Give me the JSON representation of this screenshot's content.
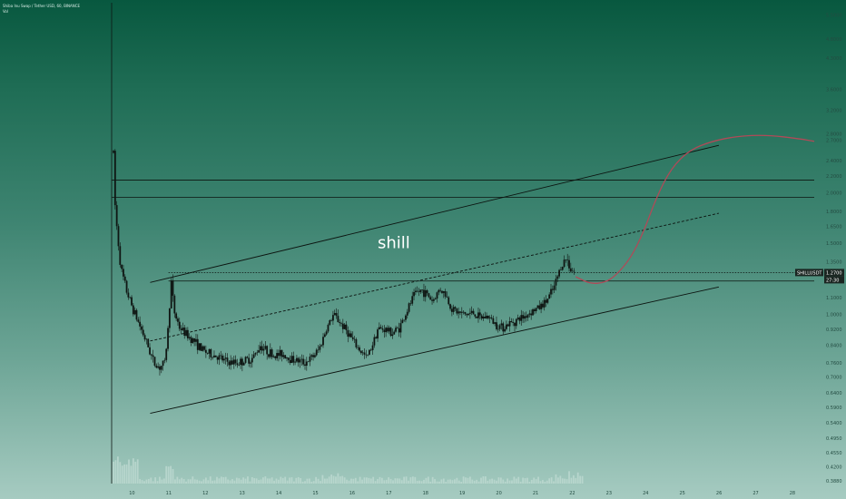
{
  "header": {
    "line1": "Shiba Inu Swap / Tether USD, 60, BINANCE",
    "line2": "Vol"
  },
  "symbol_tag": "SHILLUSDT",
  "price_tag": "1.2700",
  "countdown_tag": "27:30",
  "annotation_text": "shill",
  "colors": {
    "candles": "#0f1613",
    "lines": "#0c1410",
    "projection": "#b04a58",
    "tag_bg": "#1a2521"
  },
  "chart_data": {
    "type": "candlestick",
    "title": "",
    "x_axis": {
      "ticks": [
        10,
        11,
        12,
        13,
        14,
        15,
        16,
        17,
        18,
        19,
        20,
        21,
        22,
        23,
        24,
        25,
        26,
        27,
        28
      ],
      "range": [
        9.45,
        28.6
      ]
    },
    "y_axis": {
      "scale": "log",
      "range": [
        0.382,
        5.9
      ],
      "ticks": [
        "5.5000",
        "4.8000",
        "4.3000",
        "3.6000",
        "3.2000",
        "2.8000",
        "2.7000",
        "2.4000",
        "2.2000",
        "2.0000",
        "1.8000",
        "1.6500",
        "1.5000",
        "1.3500",
        "1.2700",
        "1.1000",
        "1.0000",
        "0.9200",
        "0.8400",
        "0.7600",
        "0.7000",
        "0.6400",
        "0.5900",
        "0.5400",
        "0.4950",
        "0.4550",
        "0.4200",
        "0.3880"
      ]
    },
    "price_path": [
      [
        9.45,
        3.5
      ],
      [
        9.55,
        1.8
      ],
      [
        9.7,
        1.3
      ],
      [
        9.85,
        1.15
      ],
      [
        10.0,
        1.05
      ],
      [
        10.15,
        0.97
      ],
      [
        10.3,
        0.9
      ],
      [
        10.45,
        0.83
      ],
      [
        10.6,
        0.76
      ],
      [
        10.75,
        0.74
      ],
      [
        10.9,
        0.76
      ],
      [
        11.0,
        0.95
      ],
      [
        11.07,
        1.22
      ],
      [
        11.15,
        1.02
      ],
      [
        11.3,
        0.93
      ],
      [
        11.5,
        0.89
      ],
      [
        11.7,
        0.86
      ],
      [
        11.9,
        0.82
      ],
      [
        12.1,
        0.8
      ],
      [
        12.3,
        0.79
      ],
      [
        12.5,
        0.77
      ],
      [
        12.7,
        0.76
      ],
      [
        12.9,
        0.76
      ],
      [
        13.1,
        0.77
      ],
      [
        13.3,
        0.78
      ],
      [
        13.5,
        0.84
      ],
      [
        13.7,
        0.81
      ],
      [
        13.9,
        0.79
      ],
      [
        14.1,
        0.8
      ],
      [
        14.3,
        0.78
      ],
      [
        14.5,
        0.77
      ],
      [
        14.7,
        0.76
      ],
      [
        14.9,
        0.78
      ],
      [
        15.1,
        0.82
      ],
      [
        15.3,
        0.92
      ],
      [
        15.5,
        1.0
      ],
      [
        15.7,
        0.95
      ],
      [
        15.9,
        0.9
      ],
      [
        16.1,
        0.84
      ],
      [
        16.3,
        0.8
      ],
      [
        16.4,
        0.78
      ],
      [
        16.55,
        0.84
      ],
      [
        16.7,
        0.92
      ],
      [
        16.9,
        0.92
      ],
      [
        17.1,
        0.9
      ],
      [
        17.3,
        0.93
      ],
      [
        17.5,
        1.02
      ],
      [
        17.7,
        1.12
      ],
      [
        17.9,
        1.15
      ],
      [
        18.05,
        1.12
      ],
      [
        18.2,
        1.08
      ],
      [
        18.4,
        1.16
      ],
      [
        18.55,
        1.12
      ],
      [
        18.7,
        1.04
      ],
      [
        18.9,
        1.01
      ],
      [
        19.1,
        1.0
      ],
      [
        19.3,
        1.01
      ],
      [
        19.5,
        0.98
      ],
      [
        19.7,
        0.99
      ],
      [
        19.9,
        0.95
      ],
      [
        20.1,
        0.93
      ],
      [
        20.3,
        0.95
      ],
      [
        20.5,
        0.97
      ],
      [
        20.7,
        0.99
      ],
      [
        20.9,
        1.02
      ],
      [
        21.1,
        1.04
      ],
      [
        21.3,
        1.08
      ],
      [
        21.5,
        1.16
      ],
      [
        21.7,
        1.32
      ],
      [
        21.85,
        1.38
      ],
      [
        21.95,
        1.3
      ],
      [
        22.1,
        1.27
      ]
    ],
    "trend_lines": [
      {
        "name": "channel-upper",
        "style": "solid",
        "from": [
          10.5,
          1.2
        ],
        "to": [
          26.0,
          2.62
        ]
      },
      {
        "name": "channel-lower",
        "style": "solid",
        "from": [
          10.5,
          0.57
        ],
        "to": [
          26.0,
          1.17
        ]
      },
      {
        "name": "channel-mid",
        "style": "dashed",
        "from": [
          10.5,
          0.86
        ],
        "to": [
          26.0,
          1.78
        ]
      }
    ],
    "horizontal_lines": [
      {
        "name": "resistance-upper",
        "y": 2.15,
        "x_from": 9.45,
        "x_to": 28.6
      },
      {
        "name": "resistance-lower",
        "y": 1.95,
        "x_from": 9.45,
        "x_to": 28.6
      },
      {
        "name": "current-price",
        "y": 1.27,
        "x_from": 11.0,
        "x_to": 28.6,
        "style": "dotted"
      },
      {
        "name": "support-level",
        "y": 1.21,
        "x_from": 11.0,
        "x_to": 28.6
      }
    ],
    "projection_path": [
      [
        22.1,
        1.24
      ],
      [
        22.5,
        1.19
      ],
      [
        22.9,
        1.2
      ],
      [
        23.2,
        1.25
      ],
      [
        23.6,
        1.38
      ],
      [
        23.95,
        1.6
      ],
      [
        24.3,
        1.95
      ],
      [
        24.7,
        2.3
      ],
      [
        25.2,
        2.55
      ],
      [
        25.8,
        2.68
      ],
      [
        26.5,
        2.76
      ],
      [
        27.3,
        2.78
      ],
      [
        28.2,
        2.72
      ],
      [
        28.6,
        2.68
      ]
    ],
    "volume_bars": {
      "x_range": [
        9.45,
        22.3
      ],
      "max": 1.0
    },
    "annotation": {
      "x": 16.7,
      "y": 1.46
    },
    "grid": false
  }
}
